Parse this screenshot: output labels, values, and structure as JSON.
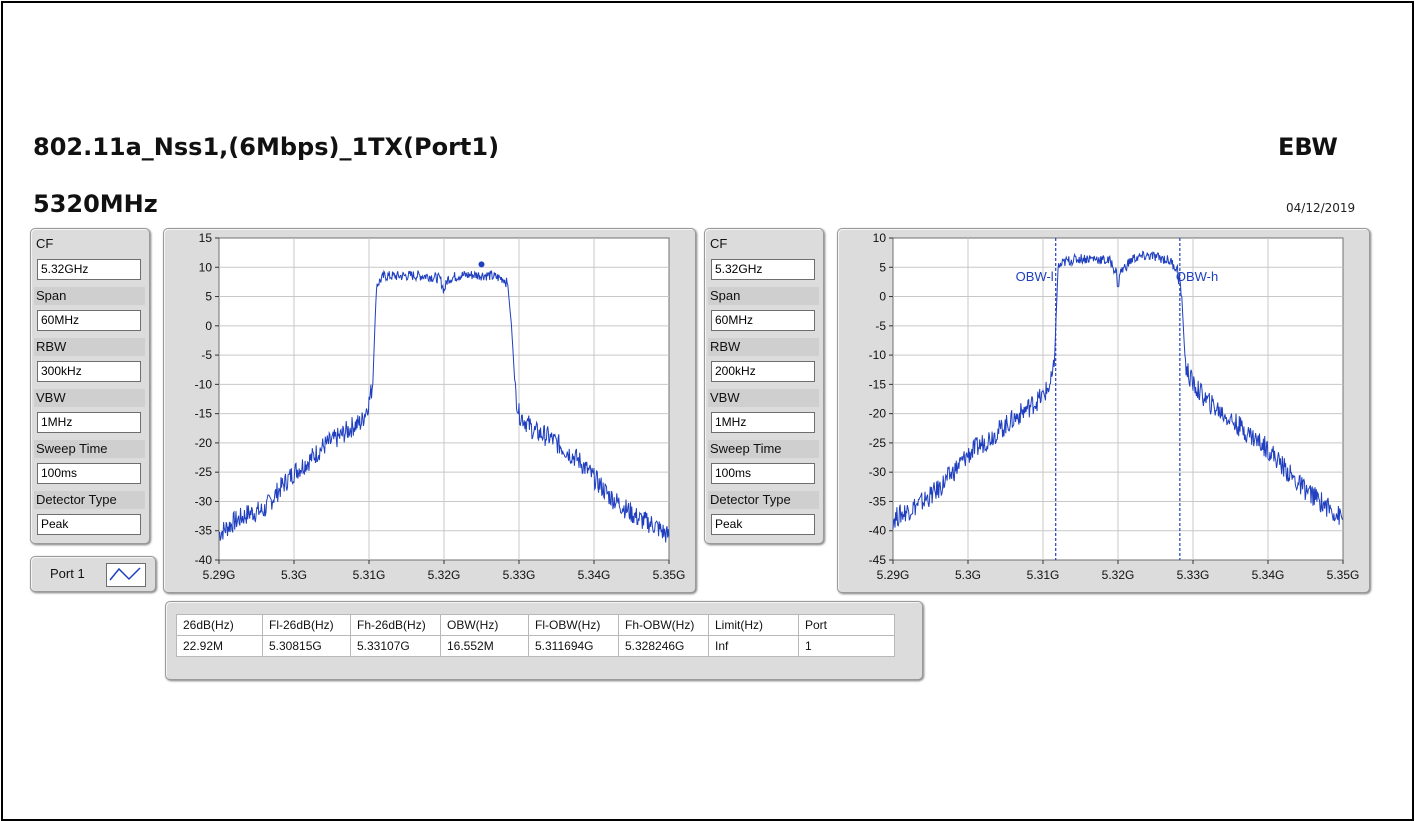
{
  "header": {
    "title": "802.11a_Nss1,(6Mbps)_1TX(Port1)",
    "test_name": "EBW",
    "frequency": "5320MHz",
    "date": "04/12/2019"
  },
  "left_params": {
    "items": [
      {
        "label": "CF",
        "value": "5.32GHz"
      },
      {
        "label": "Span",
        "value": "60MHz"
      },
      {
        "label": "RBW",
        "value": "300kHz"
      },
      {
        "label": "VBW",
        "value": "1MHz"
      },
      {
        "label": "Sweep Time",
        "value": "100ms"
      },
      {
        "label": "Detector Type",
        "value": "Peak"
      }
    ]
  },
  "right_params": {
    "items": [
      {
        "label": "CF",
        "value": "5.32GHz"
      },
      {
        "label": "Span",
        "value": "60MHz"
      },
      {
        "label": "RBW",
        "value": "200kHz"
      },
      {
        "label": "VBW",
        "value": "1MHz"
      },
      {
        "label": "Sweep Time",
        "value": "100ms"
      },
      {
        "label": "Detector Type",
        "value": "Peak"
      }
    ]
  },
  "legend": {
    "label": "Port 1"
  },
  "colors": {
    "trace": "#1f3fbf",
    "marker_line": "#1f3fbf",
    "grid": "#c8c8c8",
    "panel": "#dcdcdc"
  },
  "chart_data": [
    {
      "type": "line",
      "x_ticks": [
        "5.29G",
        "5.3G",
        "5.31G",
        "5.32G",
        "5.33G",
        "5.34G",
        "5.35G"
      ],
      "y_ticks": [
        "15",
        "10",
        "5",
        "0",
        "-5",
        "-10",
        "-15",
        "-20",
        "-25",
        "-30",
        "-35",
        "-40"
      ],
      "xlim": [
        5.29,
        5.35
      ],
      "ylim": [
        -40,
        15
      ],
      "grid": true,
      "series": [
        {
          "x": [
            5.29,
            5.292,
            5.294,
            5.296,
            5.298,
            5.3,
            5.302,
            5.304,
            5.306,
            5.308,
            5.309,
            5.31,
            5.3105,
            5.311,
            5.312,
            5.314,
            5.316,
            5.318,
            5.3195,
            5.32,
            5.3205,
            5.322,
            5.324,
            5.326,
            5.328,
            5.3285,
            5.329,
            5.3295,
            5.33,
            5.332,
            5.334,
            5.336,
            5.338,
            5.34,
            5.342,
            5.344,
            5.346,
            5.348,
            5.35
          ],
          "y": [
            -35.5,
            -33.5,
            -32,
            -31.5,
            -28,
            -25,
            -23,
            -20.5,
            -19,
            -17,
            -16.5,
            -13,
            -10,
            7,
            8.5,
            8.5,
            8.6,
            8.5,
            8,
            6,
            8,
            8.6,
            8.7,
            8.6,
            8,
            7,
            0,
            -11,
            -15,
            -18,
            -19,
            -21,
            -23,
            -26,
            -29,
            -31,
            -33,
            -34,
            -36
          ]
        }
      ],
      "markers": [
        {
          "x": 5.325,
          "y": 10.5
        }
      ]
    },
    {
      "type": "line",
      "x_ticks": [
        "5.29G",
        "5.3G",
        "5.31G",
        "5.32G",
        "5.33G",
        "5.34G",
        "5.35G"
      ],
      "y_ticks": [
        "10",
        "5",
        "0",
        "-5",
        "-10",
        "-15",
        "-20",
        "-25",
        "-30",
        "-35",
        "-40",
        "-45"
      ],
      "xlim": [
        5.29,
        5.35
      ],
      "ylim": [
        -45,
        10
      ],
      "grid": true,
      "series": [
        {
          "x": [
            5.29,
            5.292,
            5.294,
            5.296,
            5.298,
            5.3,
            5.302,
            5.304,
            5.306,
            5.308,
            5.31,
            5.311,
            5.3115,
            5.312,
            5.313,
            5.315,
            5.317,
            5.319,
            5.3198,
            5.32,
            5.3202,
            5.322,
            5.324,
            5.326,
            5.327,
            5.328,
            5.3285,
            5.329,
            5.33,
            5.332,
            5.334,
            5.336,
            5.338,
            5.34,
            5.342,
            5.344,
            5.346,
            5.348,
            5.35
          ],
          "y": [
            -38,
            -36.5,
            -35,
            -33,
            -30,
            -27,
            -25,
            -23,
            -21,
            -19,
            -17,
            -15,
            -12,
            5,
            6,
            6.5,
            6.5,
            6,
            4,
            1,
            4,
            6.5,
            7,
            6.5,
            6,
            4.5,
            0,
            -12,
            -15,
            -18,
            -20,
            -22,
            -24,
            -26,
            -29,
            -32,
            -34,
            -36,
            -38
          ]
        }
      ],
      "marker_lines": [
        {
          "label": "OBW-l",
          "x": 5.311694
        },
        {
          "label": "OBW-h",
          "x": 5.328246
        }
      ]
    }
  ],
  "results_table": {
    "headers": [
      "26dB(Hz)",
      "Fl-26dB(Hz)",
      "Fh-26dB(Hz)",
      "OBW(Hz)",
      "Fl-OBW(Hz)",
      "Fh-OBW(Hz)",
      "Limit(Hz)",
      "Port"
    ],
    "rows": [
      [
        "22.92M",
        "5.30815G",
        "5.33107G",
        "16.552M",
        "5.311694G",
        "5.328246G",
        "Inf",
        "1"
      ]
    ]
  }
}
